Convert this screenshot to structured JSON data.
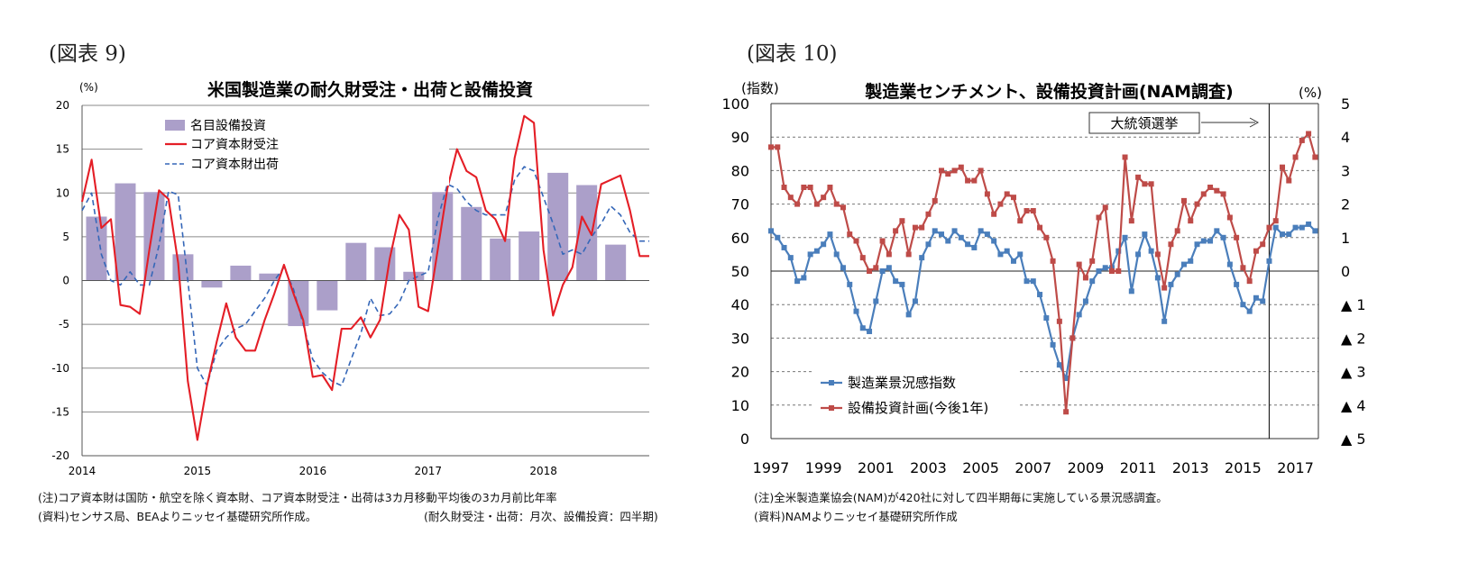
{
  "left": {
    "figure_label": "(図表 9)",
    "notes": [
      "(注)コア資本財は国防・航空を除く資本財、コア資本財受注・出荷は3カ月移動平均後の3カ月前比年率",
      "(資料)センサス局、BEAよりニッセイ基礎研究所作成。",
      "(耐久財受注・出荷：月次、設備投資：四半期)"
    ]
  },
  "right": {
    "figure_label": "(図表 10)",
    "notes": [
      "(注)全米製造業協会(NAM)が420社に対して四半期毎に実施している景況感調査。",
      "(資料)NAMよりニッセイ基礎研究所作成"
    ]
  },
  "chart_data": [
    {
      "type": "bar+line",
      "title": "米国製造業の耐久財受注・出荷と設備投資",
      "ylabel": "(%)",
      "ylim": [
        -20,
        20
      ],
      "yticks": [
        -20,
        -15,
        -10,
        -5,
        0,
        5,
        10,
        15,
        20
      ],
      "xlim": [
        2014,
        2018.917
      ],
      "xticks": [
        2014,
        2015,
        2016,
        2017,
        2018
      ],
      "xtick_labels": [
        "2014",
        "2015",
        "2016",
        "2017",
        "2018"
      ],
      "legend_position": "upper-left",
      "series": [
        {
          "name": "名目設備投資",
          "kind": "bar",
          "color": "#ab9fc9",
          "x": [
            2014.125,
            2014.375,
            2014.625,
            2014.875,
            2015.125,
            2015.375,
            2015.625,
            2015.875,
            2016.125,
            2016.375,
            2016.625,
            2016.875,
            2017.125,
            2017.375,
            2017.625,
            2017.875,
            2018.125,
            2018.375,
            2018.625
          ],
          "values": [
            7.3,
            11.1,
            10.1,
            3.0,
            -0.8,
            1.7,
            0.8,
            -5.2,
            -3.4,
            4.3,
            3.8,
            1.0,
            10.1,
            8.4,
            4.8,
            5.6,
            12.3,
            10.9,
            4.1
          ]
        },
        {
          "name": "コア資本財受注",
          "kind": "line",
          "style": "solid",
          "color": "#e41e26",
          "x": [
            2014.0,
            2014.083,
            2014.167,
            2014.25,
            2014.333,
            2014.417,
            2014.5,
            2014.583,
            2014.667,
            2014.75,
            2014.833,
            2014.917,
            2015.0,
            2015.083,
            2015.167,
            2015.25,
            2015.333,
            2015.417,
            2015.5,
            2015.583,
            2015.667,
            2015.75,
            2015.833,
            2015.917,
            2016.0,
            2016.083,
            2016.167,
            2016.25,
            2016.333,
            2016.417,
            2016.5,
            2016.583,
            2016.667,
            2016.75,
            2016.833,
            2016.917,
            2017.0,
            2017.083,
            2017.167,
            2017.25,
            2017.333,
            2017.417,
            2017.5,
            2017.583,
            2017.667,
            2017.75,
            2017.833,
            2017.917,
            2018.0,
            2018.083,
            2018.167,
            2018.25,
            2018.333,
            2018.417,
            2018.5,
            2018.583,
            2018.667,
            2018.75,
            2018.833,
            2018.917
          ],
          "values": [
            9.0,
            13.8,
            6.0,
            7.0,
            -2.8,
            -3.0,
            -3.8,
            3.5,
            10.3,
            9.3,
            2.0,
            -11.5,
            -18.2,
            -12.0,
            -7.0,
            -2.6,
            -6.5,
            -8.0,
            -8.0,
            -4.5,
            -1.5,
            1.8,
            -1.5,
            -4.5,
            -11.0,
            -10.8,
            -12.5,
            -5.5,
            -5.5,
            -4.2,
            -6.5,
            -4.5,
            2.5,
            7.5,
            5.8,
            -3.0,
            -3.5,
            3.5,
            10.5,
            15.0,
            12.5,
            11.8,
            8.0,
            7.0,
            4.5,
            14.0,
            18.8,
            18.0,
            3.5,
            -4.0,
            -0.5,
            1.5,
            7.3,
            5.2,
            11.0,
            11.5,
            12.0,
            8.0,
            2.8,
            2.8
          ]
        },
        {
          "name": "コア資本財出荷",
          "kind": "line",
          "style": "dashed",
          "color": "#3567b8",
          "x": [
            2014.0,
            2014.083,
            2014.167,
            2014.25,
            2014.333,
            2014.417,
            2014.5,
            2014.583,
            2014.667,
            2014.75,
            2014.833,
            2014.917,
            2015.0,
            2015.083,
            2015.167,
            2015.25,
            2015.333,
            2015.417,
            2015.5,
            2015.583,
            2015.667,
            2015.75,
            2015.833,
            2015.917,
            2016.0,
            2016.083,
            2016.167,
            2016.25,
            2016.333,
            2016.417,
            2016.5,
            2016.583,
            2016.667,
            2016.75,
            2016.833,
            2016.917,
            2017.0,
            2017.083,
            2017.167,
            2017.25,
            2017.333,
            2017.417,
            2017.5,
            2017.583,
            2017.667,
            2017.75,
            2017.833,
            2017.917,
            2018.0,
            2018.083,
            2018.167,
            2018.25,
            2018.333,
            2018.417,
            2018.5,
            2018.583,
            2018.667,
            2018.75,
            2018.833,
            2018.917
          ],
          "values": [
            8.0,
            10.0,
            3.0,
            0.0,
            -0.5,
            1.0,
            -0.5,
            -0.5,
            4.0,
            10.2,
            9.8,
            0.0,
            -10.0,
            -12.0,
            -8.0,
            -6.5,
            -5.5,
            -5.0,
            -3.5,
            -2.0,
            0.0,
            1.5,
            -1.0,
            -5.0,
            -9.0,
            -10.5,
            -11.5,
            -12.0,
            -9.0,
            -6.0,
            -2.0,
            -4.0,
            -3.8,
            -2.5,
            0.0,
            0.5,
            1.0,
            7.0,
            11.0,
            10.5,
            9.0,
            8.0,
            7.5,
            7.5,
            7.5,
            11.5,
            13.0,
            12.5,
            9.5,
            6.5,
            3.0,
            3.5,
            3.0,
            5.0,
            6.5,
            8.5,
            7.5,
            5.5,
            4.5,
            4.5
          ]
        }
      ]
    },
    {
      "type": "line",
      "title": "製造業センチメント、設備投資計画(NAM調査)",
      "ylabel_left": "(指数)",
      "ylabel_right": "(%)",
      "ylim_left": [
        0,
        100
      ],
      "yticks_left": [
        0,
        10,
        20,
        30,
        40,
        50,
        60,
        70,
        80,
        90,
        100
      ],
      "ylim_right": [
        -5,
        5
      ],
      "yticks_right_labels": [
        "5",
        "4",
        "3",
        "2",
        "1",
        "0",
        "▲ 1",
        "▲ 2",
        "▲ 3",
        "▲ 4",
        "▲ 5"
      ],
      "xlim": [
        1997,
        2017.875
      ],
      "xticks": [
        1997,
        1999,
        2001,
        2003,
        2005,
        2007,
        2009,
        2011,
        2013,
        2015,
        2017
      ],
      "xtick_labels": [
        "1997",
        "1999",
        "2001",
        "2003",
        "2005",
        "2007",
        "2009",
        "2011",
        "2013",
        "2015",
        "2017"
      ],
      "grid": "dashed",
      "annotation": {
        "text": "大統領選挙",
        "x": 2016.0
      },
      "legend_position": "lower-left",
      "series": [
        {
          "name": "製造業景況感指数",
          "axis": "left",
          "color": "#4a7ebb",
          "marker": "square",
          "values": [
            62,
            60,
            57,
            54,
            47,
            48,
            55,
            56,
            58,
            61,
            55,
            51,
            46,
            38,
            33,
            32,
            41,
            50,
            51,
            47,
            46,
            37,
            41,
            54,
            58,
            62,
            61,
            59,
            62,
            60,
            58,
            57,
            62,
            61,
            59,
            55,
            56,
            53,
            55,
            47,
            47,
            43,
            36,
            28,
            22,
            18,
            30,
            37,
            41,
            47,
            50,
            51,
            51,
            56,
            60,
            44,
            55,
            61,
            56,
            48,
            35,
            46,
            49,
            52,
            53,
            58,
            59,
            59,
            62,
            60,
            52,
            46,
            40,
            38,
            42,
            41,
            53,
            63,
            61,
            61,
            63,
            63,
            64,
            62
          ]
        },
        {
          "name": "設備投資計画(今後1年)",
          "axis": "right",
          "color": "#be4b48",
          "marker": "square",
          "values": [
            3.7,
            3.7,
            2.5,
            2.2,
            2.0,
            2.5,
            2.5,
            2.0,
            2.2,
            2.5,
            2.0,
            1.9,
            1.1,
            0.9,
            0.4,
            0.0,
            0.1,
            0.9,
            0.5,
            1.2,
            1.5,
            0.5,
            1.3,
            1.3,
            1.7,
            2.1,
            3.0,
            2.9,
            3.0,
            3.1,
            2.7,
            2.7,
            3.0,
            2.3,
            1.7,
            2.0,
            2.3,
            2.2,
            1.5,
            1.8,
            1.8,
            1.3,
            1.0,
            0.3,
            -1.5,
            -4.2,
            -2.0,
            0.2,
            -0.2,
            0.3,
            1.6,
            1.9,
            0.0,
            0.0,
            3.4,
            1.5,
            2.8,
            2.6,
            2.6,
            0.5,
            -0.5,
            0.8,
            1.2,
            2.1,
            1.5,
            2.0,
            2.3,
            2.5,
            2.4,
            2.3,
            1.6,
            1.0,
            0.1,
            -0.3,
            0.6,
            0.8,
            1.3,
            1.5,
            3.1,
            2.7,
            3.4,
            3.9,
            4.1,
            3.4
          ]
        }
      ]
    }
  ]
}
